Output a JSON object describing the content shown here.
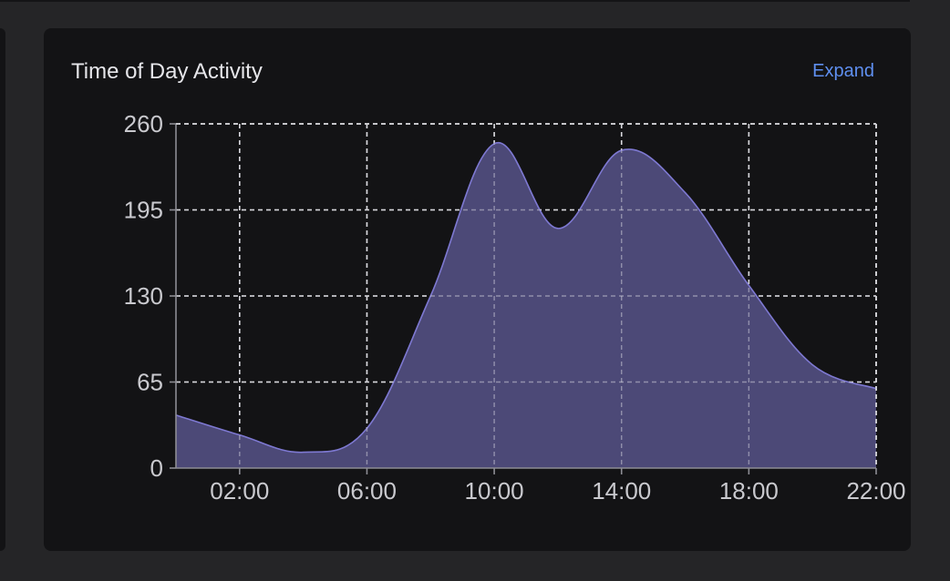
{
  "card": {
    "title": "Time of Day Activity",
    "expand_label": "Expand"
  },
  "colors": {
    "background": "#252527",
    "card": "#131315",
    "area_fill": "#4f4c7c",
    "area_stroke": "#7e79d2",
    "grid": "#d9d9de",
    "link": "#5f8ff0"
  },
  "chart_data": {
    "type": "area",
    "title": "Time of Day Activity",
    "xlabel": "",
    "ylabel": "",
    "x_ticks": [
      "02:00",
      "06:00",
      "10:00",
      "14:00",
      "18:00",
      "22:00"
    ],
    "y_ticks": [
      0,
      65,
      130,
      195,
      260
    ],
    "xlim": [
      0,
      22
    ],
    "ylim": [
      0,
      260
    ],
    "grid": true,
    "series": [
      {
        "x": [
          0,
          2,
          4,
          6,
          8,
          10,
          12,
          14,
          16,
          18,
          20,
          22
        ],
        "values": [
          40,
          25,
          12,
          30,
          130,
          245,
          181,
          240,
          208,
          138,
          78,
          60
        ]
      }
    ]
  }
}
